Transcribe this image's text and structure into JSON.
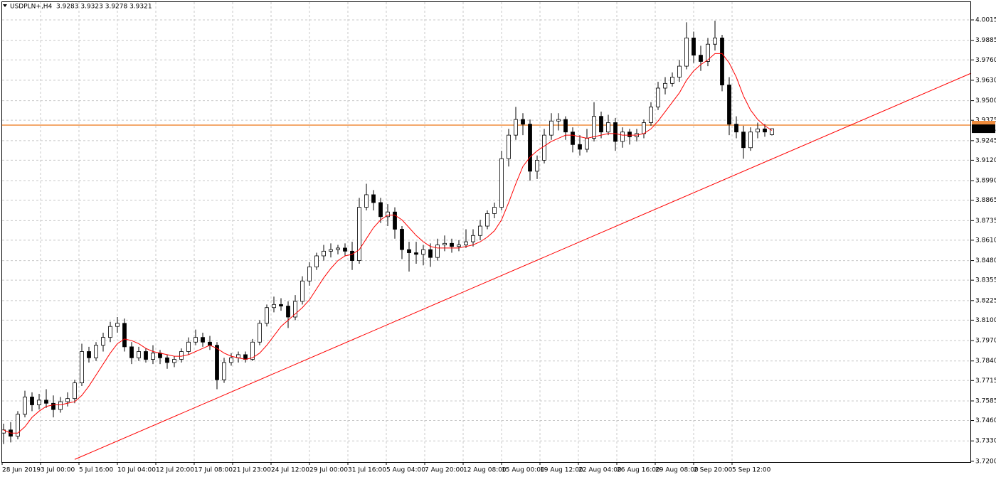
{
  "chart_data": {
    "type": "candlestick",
    "header": "USDPLN+,H4  3.9283 3.9323 3.9278 3.9321",
    "x_labels": [
      "28 Jun 2019",
      "3 Jul 00:00",
      "5 Jul 16:00",
      "10 Jul 04:00",
      "12 Jul 20:00",
      "17 Jul 08:00",
      "21 Jul 23:00",
      "24 Jul 12:00",
      "29 Jul 00:00",
      "31 Jul 16:00",
      "5 Aug 04:00",
      "7 Aug 20:00",
      "12 Aug 08:00",
      "15 Aug 00:00",
      "19 Aug 12:00",
      "22 Aug 04:00",
      "26 Aug 16:00",
      "29 Aug 08:00",
      "2 Sep 20:00",
      "5 Sep 12:00"
    ],
    "open": [
      3.738,
      3.74,
      3.736,
      3.75,
      3.761,
      3.756,
      3.759,
      3.757,
      3.753,
      3.758,
      3.76,
      3.77,
      3.79,
      3.786,
      3.794,
      3.799,
      3.806,
      3.808,
      3.793,
      3.786,
      3.79,
      3.785,
      3.789,
      3.786,
      3.783,
      3.785,
      3.79,
      3.796,
      3.799,
      3.796,
      3.794,
      3.772,
      3.783,
      3.786,
      3.788,
      3.785,
      3.796,
      3.808,
      3.818,
      3.82,
      3.819,
      3.812,
      3.822,
      3.835,
      3.844,
      3.851,
      3.854,
      3.855,
      3.856,
      3.854,
      3.848,
      3.882,
      3.89,
      3.885,
      3.876,
      3.879,
      3.868,
      3.855,
      3.853,
      3.852,
      3.855,
      3.85,
      3.858,
      3.859,
      3.857,
      3.858,
      3.86,
      3.864,
      3.87,
      3.878,
      3.882,
      3.913,
      3.928,
      3.938,
      3.935,
      3.905,
      3.912,
      3.928,
      3.937,
      3.938,
      3.93,
      3.922,
      3.919,
      3.926,
      3.94,
      3.93,
      3.936,
      3.924,
      3.93,
      3.927,
      3.929,
      3.936,
      3.946,
      3.958,
      3.961,
      3.965,
      3.972,
      3.99,
      3.979,
      3.975,
      3.986,
      3.99,
      3.96,
      3.935,
      3.93,
      3.92,
      3.93,
      3.932,
      3.9283
    ],
    "high": [
      3.744,
      3.745,
      3.752,
      3.765,
      3.764,
      3.763,
      3.766,
      3.762,
      3.761,
      3.764,
      3.772,
      3.795,
      3.793,
      3.796,
      3.802,
      3.809,
      3.812,
      3.811,
      3.796,
      3.793,
      3.792,
      3.794,
      3.791,
      3.788,
      3.787,
      3.792,
      3.799,
      3.804,
      3.802,
      3.8,
      3.796,
      3.786,
      3.789,
      3.79,
      3.79,
      3.798,
      3.81,
      3.82,
      3.825,
      3.824,
      3.822,
      3.826,
      3.838,
      3.847,
      3.853,
      3.858,
      3.859,
      3.858,
      3.859,
      3.86,
      3.888,
      3.897,
      3.893,
      3.888,
      3.884,
      3.882,
      3.87,
      3.86,
      3.86,
      3.858,
      3.859,
      3.862,
      3.864,
      3.862,
      3.861,
      3.868,
      3.868,
      3.874,
      3.88,
      3.885,
      3.918,
      3.932,
      3.946,
      3.942,
      3.938,
      3.915,
      3.932,
      3.942,
      3.942,
      3.94,
      3.933,
      3.928,
      3.932,
      3.949,
      3.943,
      3.941,
      3.939,
      3.933,
      3.932,
      3.932,
      3.938,
      3.949,
      3.962,
      3.965,
      3.968,
      3.976,
      4.0,
      3.994,
      3.985,
      3.99,
      4.001,
      3.992,
      3.965,
      3.94,
      3.934,
      3.933,
      3.936,
      3.935,
      3.9323
    ],
    "low": [
      3.731,
      3.732,
      3.734,
      3.748,
      3.752,
      3.753,
      3.754,
      3.748,
      3.751,
      3.755,
      3.757,
      3.768,
      3.783,
      3.784,
      3.79,
      3.796,
      3.802,
      3.79,
      3.782,
      3.784,
      3.783,
      3.782,
      3.782,
      3.779,
      3.78,
      3.783,
      3.788,
      3.794,
      3.793,
      3.791,
      3.766,
      3.77,
      3.781,
      3.783,
      3.783,
      3.784,
      3.794,
      3.806,
      3.815,
      3.816,
      3.805,
      3.81,
      3.82,
      3.832,
      3.842,
      3.848,
      3.85,
      3.852,
      3.851,
      3.842,
      3.846,
      3.88,
      3.88,
      3.872,
      3.87,
      3.862,
      3.849,
      3.841,
      3.846,
      3.845,
      3.844,
      3.848,
      3.854,
      3.853,
      3.854,
      3.856,
      3.857,
      3.861,
      3.868,
      3.875,
      3.88,
      3.908,
      3.925,
      3.928,
      3.899,
      3.9,
      3.91,
      3.925,
      3.931,
      3.925,
      3.917,
      3.915,
      3.917,
      3.924,
      3.926,
      3.928,
      3.918,
      3.92,
      3.922,
      3.924,
      3.926,
      3.934,
      3.944,
      3.954,
      3.959,
      3.962,
      3.97,
      3.974,
      3.969,
      3.972,
      3.982,
      3.956,
      3.928,
      3.926,
      3.913,
      3.918,
      3.926,
      3.927,
      3.9278
    ],
    "close": [
      3.74,
      3.736,
      3.75,
      3.761,
      3.756,
      3.759,
      3.757,
      3.753,
      3.758,
      3.76,
      3.77,
      3.79,
      3.786,
      3.794,
      3.799,
      3.806,
      3.808,
      3.793,
      3.786,
      3.79,
      3.785,
      3.789,
      3.786,
      3.783,
      3.785,
      3.79,
      3.796,
      3.799,
      3.796,
      3.794,
      3.772,
      3.783,
      3.786,
      3.788,
      3.785,
      3.796,
      3.808,
      3.818,
      3.82,
      3.819,
      3.812,
      3.822,
      3.835,
      3.844,
      3.851,
      3.854,
      3.855,
      3.856,
      3.854,
      3.848,
      3.882,
      3.89,
      3.885,
      3.876,
      3.879,
      3.868,
      3.855,
      3.853,
      3.852,
      3.855,
      3.85,
      3.858,
      3.859,
      3.857,
      3.858,
      3.86,
      3.864,
      3.87,
      3.878,
      3.882,
      3.913,
      3.928,
      3.938,
      3.935,
      3.905,
      3.912,
      3.928,
      3.937,
      3.938,
      3.93,
      3.922,
      3.919,
      3.926,
      3.94,
      3.93,
      3.936,
      3.924,
      3.93,
      3.927,
      3.929,
      3.936,
      3.946,
      3.958,
      3.961,
      3.965,
      3.972,
      3.99,
      3.979,
      3.975,
      3.986,
      3.99,
      3.96,
      3.935,
      3.93,
      3.92,
      3.93,
      3.932,
      3.93,
      3.9321
    ],
    "ma": {
      "color": "#ff0000",
      "values": [
        3.74,
        3.738,
        3.738,
        3.742,
        3.748,
        3.752,
        3.755,
        3.756,
        3.756,
        3.757,
        3.758,
        3.762,
        3.768,
        3.775,
        3.782,
        3.789,
        3.795,
        3.798,
        3.797,
        3.795,
        3.792,
        3.79,
        3.789,
        3.788,
        3.787,
        3.787,
        3.788,
        3.79,
        3.792,
        3.794,
        3.792,
        3.789,
        3.787,
        3.786,
        3.785,
        3.786,
        3.789,
        3.794,
        3.8,
        3.806,
        3.81,
        3.814,
        3.818,
        3.823,
        3.83,
        3.837,
        3.843,
        3.848,
        3.851,
        3.852,
        3.855,
        3.862,
        3.869,
        3.874,
        3.877,
        3.877,
        3.874,
        3.869,
        3.864,
        3.86,
        3.857,
        3.856,
        3.856,
        3.856,
        3.856,
        3.857,
        3.858,
        3.86,
        3.863,
        3.867,
        3.874,
        3.885,
        3.897,
        3.908,
        3.914,
        3.918,
        3.921,
        3.924,
        3.926,
        3.928,
        3.928,
        3.927,
        3.926,
        3.927,
        3.928,
        3.929,
        3.929,
        3.928,
        3.928,
        3.928,
        3.929,
        3.932,
        3.937,
        3.943,
        3.949,
        3.955,
        3.963,
        3.969,
        3.973,
        3.976,
        3.98,
        3.98,
        3.974,
        3.965,
        3.953,
        3.944,
        3.938,
        3.934,
        3.931
      ]
    },
    "trendline": {
      "color": "#ff0000",
      "x": [
        10,
        136
      ],
      "y": [
        3.7212,
        3.9675
      ]
    },
    "hline": {
      "color": "#f08c3c",
      "value": 3.9344
    },
    "price_label": 3.9321,
    "ylim": [
      3.7195,
      4.0142
    ],
    "yticks": [
      {
        "value": 3.72,
        "label": "3.7200"
      },
      {
        "value": 3.733,
        "label": "3.7330"
      },
      {
        "value": 3.746,
        "label": "3.7460"
      },
      3.7585,
      3.7715,
      {
        "value": 3.784,
        "label": "3.7840"
      },
      {
        "value": 3.797,
        "label": "3.7970"
      },
      {
        "value": 3.81,
        "label": "3.8100"
      },
      3.8225,
      3.8355,
      {
        "value": 3.848,
        "label": "3.8480"
      },
      {
        "value": 3.861,
        "label": "3.8610"
      },
      3.8735,
      3.8865,
      {
        "value": 3.899,
        "label": "3.8990"
      },
      {
        "value": 3.912,
        "label": "3.9120"
      },
      3.9245,
      3.9375,
      {
        "value": 3.95,
        "label": "3.9500"
      },
      {
        "value": 3.963,
        "label": "3.9630"
      },
      {
        "value": 3.976,
        "label": "3.9760"
      },
      3.9885,
      4.0015
    ],
    "grid": true
  }
}
